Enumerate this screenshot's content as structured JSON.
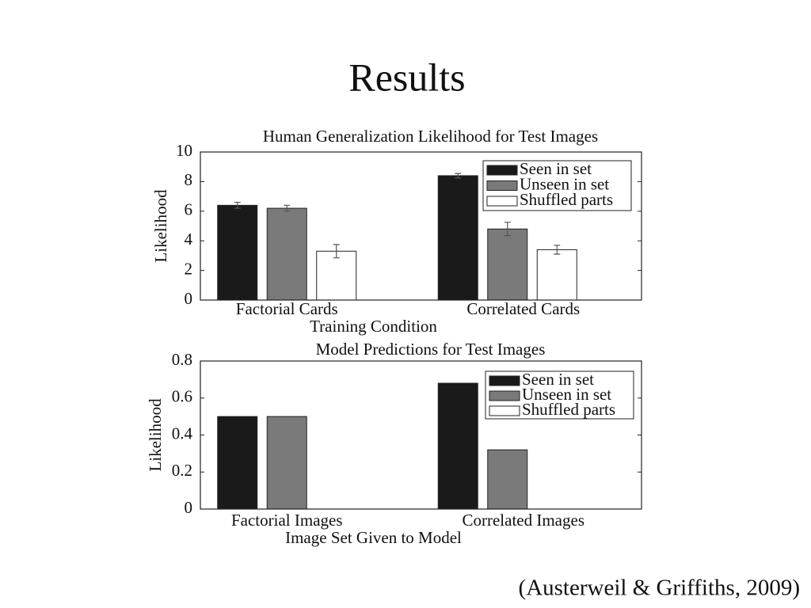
{
  "title": "Results",
  "citation": "(Austerweil & Griffiths, 2009)",
  "chart_data": [
    {
      "type": "bar",
      "title": "Human Generalization Likelihood for Test Images",
      "x_label": "Training Condition",
      "y_label": "Likelihood",
      "categories": [
        "Factorial Cards",
        "Correlated Cards"
      ],
      "series": [
        {
          "name": "Seen in set",
          "color": "#1a1a1a",
          "values": [
            6.4,
            8.4
          ],
          "errors": [
            0.2,
            0.15
          ]
        },
        {
          "name": "Unseen in set",
          "color": "#7a7a7a",
          "values": [
            6.2,
            4.8
          ],
          "errors": [
            0.2,
            0.45
          ]
        },
        {
          "name": "Shuffled parts",
          "color": "#ffffff",
          "values": [
            3.3,
            3.4
          ],
          "errors": [
            0.45,
            0.3
          ]
        }
      ],
      "ylim": [
        0,
        10
      ],
      "yticks": [
        0,
        2,
        4,
        6,
        8,
        10
      ],
      "legend": "upper right"
    },
    {
      "type": "bar",
      "title": "Model Predictions for Test Images",
      "x_label": "Image Set Given to Model",
      "y_label": "Likelihood",
      "categories": [
        "Factorial Images",
        "Correlated Images"
      ],
      "series": [
        {
          "name": "Seen in set",
          "color": "#1a1a1a",
          "values": [
            0.5,
            0.68
          ]
        },
        {
          "name": "Unseen in set",
          "color": "#7a7a7a",
          "values": [
            0.5,
            0.32
          ]
        },
        {
          "name": "Shuffled parts",
          "color": "#ffffff",
          "values": [
            0,
            0
          ]
        }
      ],
      "ylim": [
        0,
        0.8
      ],
      "yticks": [
        0,
        0.2,
        0.4,
        0.6,
        0.8
      ],
      "legend": "upper right"
    }
  ]
}
